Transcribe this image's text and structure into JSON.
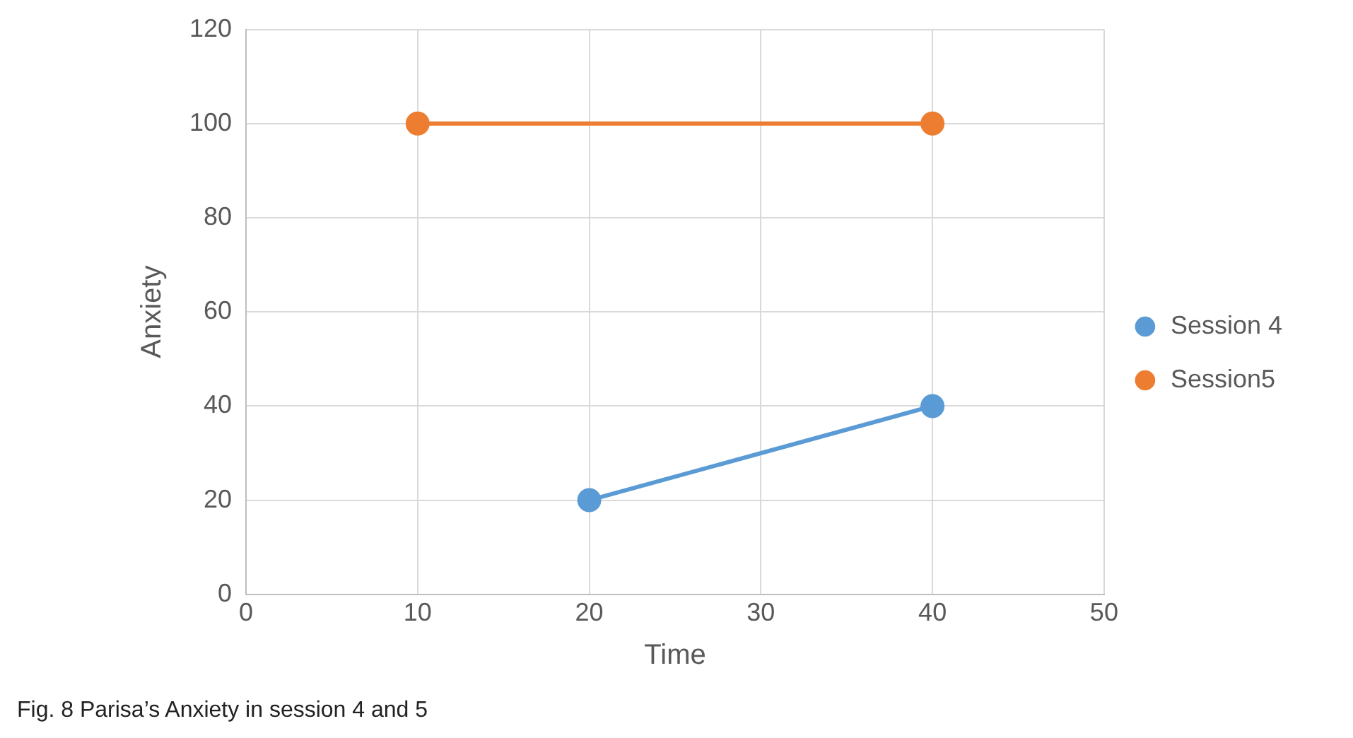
{
  "chart_data": {
    "type": "line",
    "xlabel": "Time",
    "ylabel": "Anxiety",
    "series": [
      {
        "name": "Session 4",
        "color": "#5b9bd5",
        "x": [
          20,
          40
        ],
        "values": [
          20,
          40
        ]
      },
      {
        "name": "Session5",
        "color": "#ed7d31",
        "x": [
          10,
          40
        ],
        "values": [
          100,
          100
        ]
      }
    ],
    "xlim": [
      0,
      50
    ],
    "xticks": [
      0,
      10,
      20,
      30,
      40,
      50
    ],
    "ylim": [
      0,
      120
    ],
    "yticks": [
      0,
      20,
      40,
      60,
      80,
      100,
      120
    ],
    "grid": true,
    "legend": "right",
    "marker": "circle",
    "line_style": "solid",
    "annotations": [
      "Fig. 8 Parisa’s Anxiety in session 4 and 5"
    ]
  }
}
